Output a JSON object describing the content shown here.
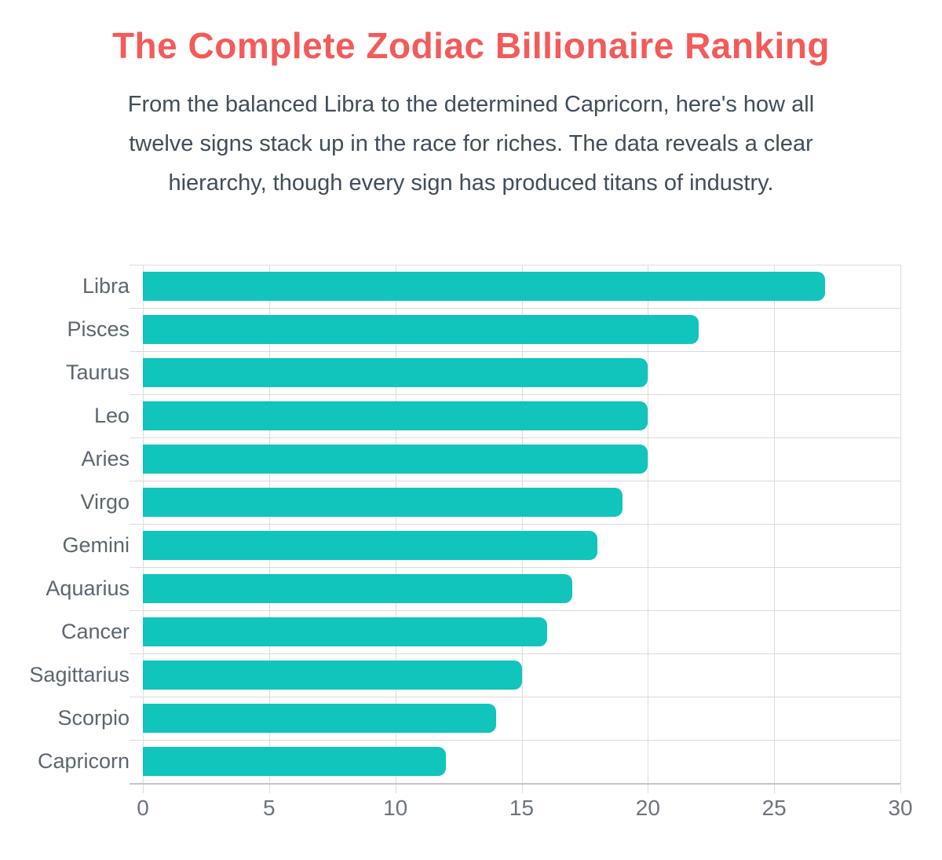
{
  "page": {
    "title": "The Complete Zodiac Billionaire Ranking",
    "subtitle_lines": [
      "From the balanced Libra to the determined Capricorn, here's how all",
      "twelve signs stack up in the race for riches. The data reveals a clear",
      "hierarchy, though every sign has produced titans of industry."
    ]
  },
  "colors": {
    "title": "#F45A5A",
    "subtitle": "#414D5B",
    "bar": "#11C4BC",
    "category_label": "#5C6672",
    "tick_label": "#6E747C",
    "gridline": "#DBDBDB",
    "axis_line": "#C3C6C9",
    "background": "#FFFFFF"
  },
  "chart_data": {
    "type": "bar",
    "orientation": "horizontal",
    "title": "The Complete Zodiac Billionaire Ranking",
    "xlabel": "",
    "ylabel": "",
    "categories": [
      "Libra",
      "Pisces",
      "Taurus",
      "Leo",
      "Aries",
      "Virgo",
      "Gemini",
      "Aquarius",
      "Cancer",
      "Sagittarius",
      "Scorpio",
      "Capricorn"
    ],
    "values": [
      27,
      22,
      20,
      20,
      20,
      19,
      18,
      17,
      16,
      15,
      14,
      12
    ],
    "xlim": [
      0,
      30
    ],
    "xticks": [
      0,
      5,
      10,
      15,
      20,
      25,
      30
    ],
    "grid": true,
    "legend": false
  }
}
